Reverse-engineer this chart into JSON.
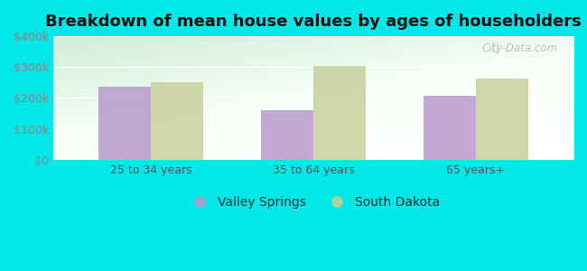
{
  "title": "Breakdown of mean house values by ages of householders",
  "categories": [
    "25 to 34 years",
    "35 to 64 years",
    "65 years+"
  ],
  "valley_springs": [
    235000,
    160000,
    207000
  ],
  "south_dakota": [
    252000,
    305000,
    262000
  ],
  "ylim": [
    0,
    400000
  ],
  "yticks": [
    0,
    100000,
    200000,
    300000,
    400000
  ],
  "ytick_labels": [
    "$0",
    "$100k",
    "$200k",
    "$300k",
    "$400k"
  ],
  "bar_color_vs": "#b899cc",
  "bar_color_sd": "#c8d09a",
  "background_color": "#00e8e8",
  "legend_vs": "Valley Springs",
  "legend_sd": "South Dakota",
  "title_fontsize": 13,
  "tick_fontsize": 9,
  "legend_fontsize": 10,
  "bar_width": 0.32,
  "watermark": "City-Data.com"
}
